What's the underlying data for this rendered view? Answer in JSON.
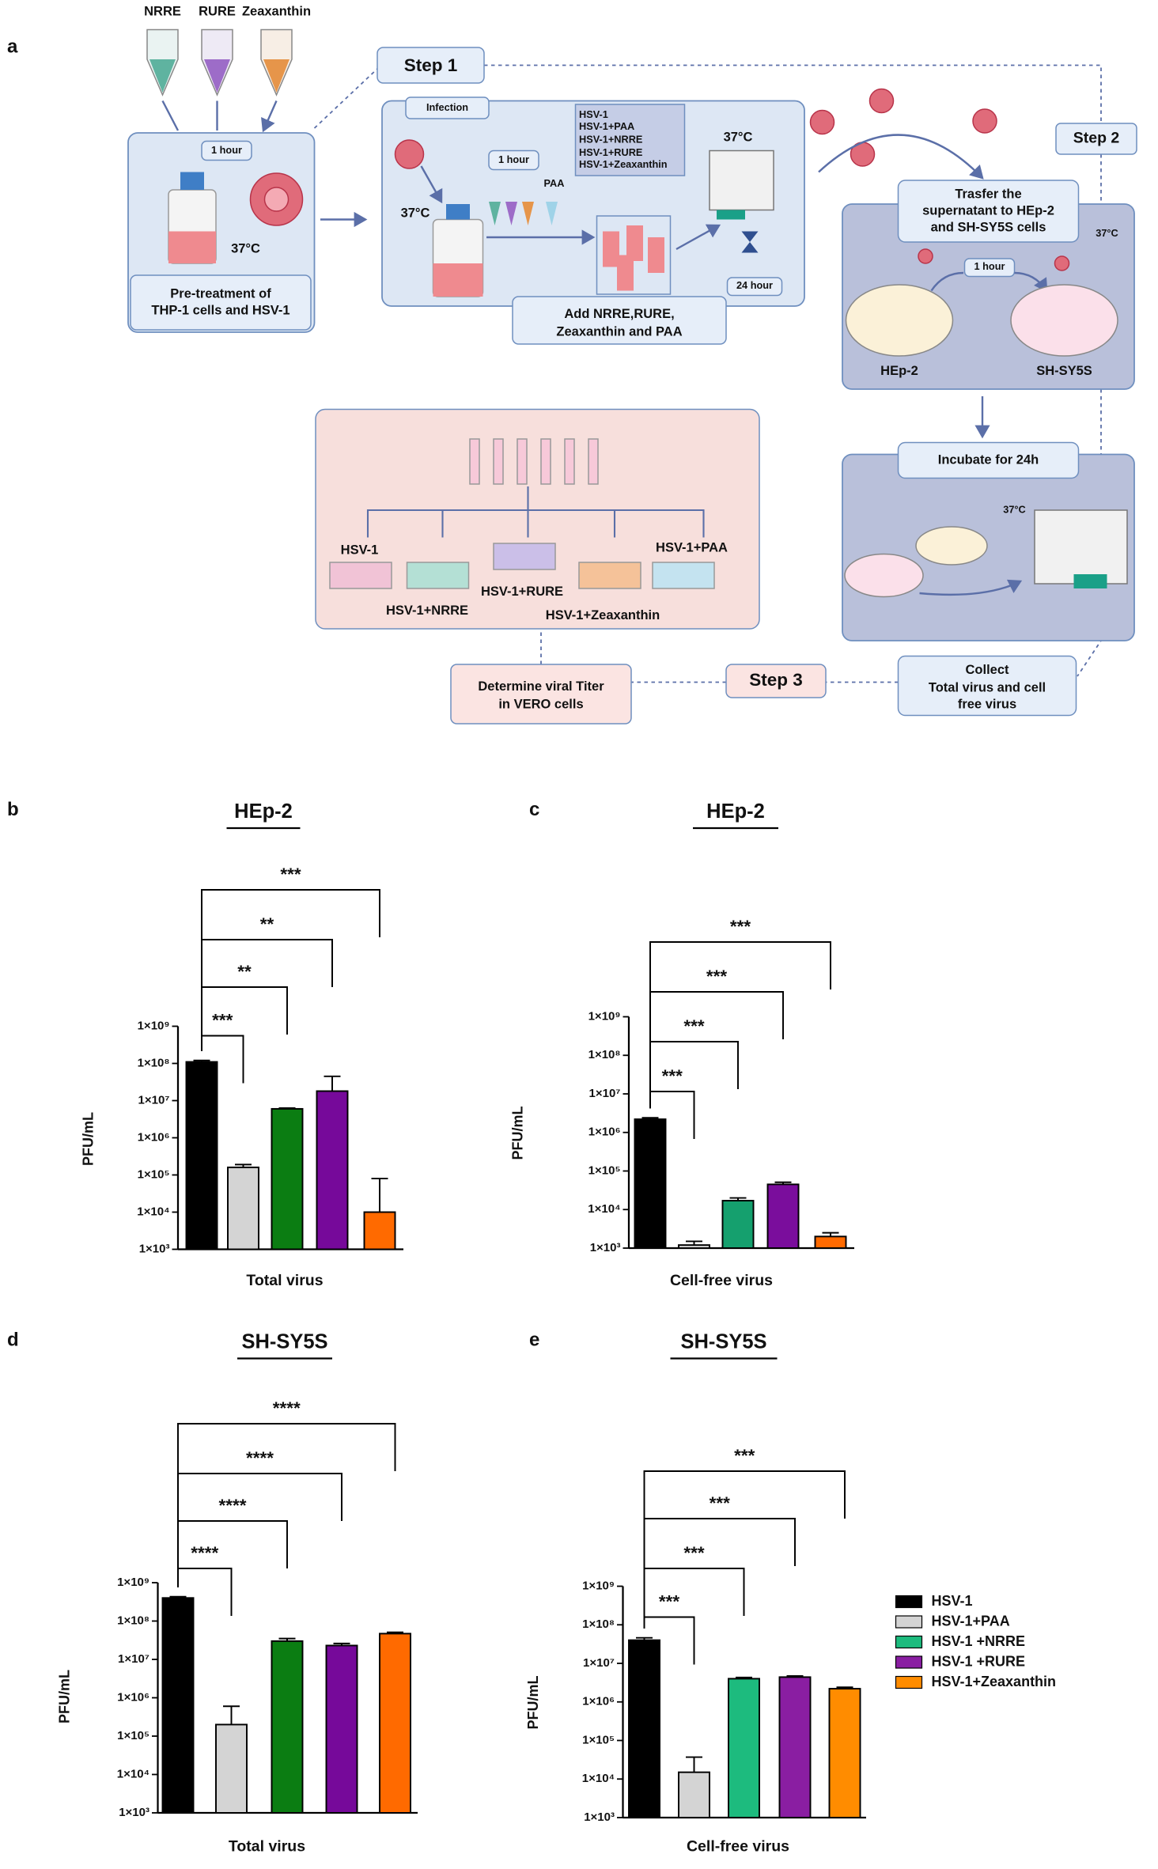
{
  "panel_labels": [
    "a",
    "b",
    "c",
    "d",
    "e"
  ],
  "diagram": {
    "tubes": [
      "NRRE",
      "RURE",
      "Zeaxanthin"
    ],
    "pretreatment": {
      "time": "1 hour",
      "temperature": "37°C",
      "label": [
        "Pre-treatment of",
        "THP-1 cells and HSV-1"
      ]
    },
    "step1": {
      "title": "Step 1",
      "infection": "Infection",
      "temperature": "37°C",
      "time": "1 hour",
      "inhibitor": "PAA",
      "groups": [
        "HSV-1",
        "HSV-1+PAA",
        "HSV-1+NRRE",
        "HSV-1+RURE",
        "HSV-1+Zeaxanthin"
      ],
      "incubator_temperature": "37°C",
      "incubation": "24 hour",
      "label": [
        "Add NRRE,RURE,",
        "Zeaxanthin and PAA"
      ]
    },
    "step2": {
      "title": "Step 2",
      "label": [
        "Trasfer the",
        "supernatant to HEp-2",
        "and SH-SY5S cells"
      ],
      "temperature": "37°C",
      "time": "1 hour",
      "cells": [
        "HEp-2",
        "SH-SY5S"
      ],
      "incubate": "Incubate for 24h",
      "incubator_temperature": "37°C"
    },
    "step3": {
      "title": "Step 3",
      "collect": [
        "Collect",
        "Total virus and cell",
        "free virus"
      ],
      "titer": [
        "Determine viral Titer",
        "in VERO cells"
      ],
      "plates": [
        "HSV-1",
        "HSV-1+NRRE",
        "HSV-1+RURE",
        "HSV-1+Zeaxanthin",
        "HSV-1+PAA"
      ]
    }
  },
  "chart_data": [
    {
      "type": "bar",
      "title": "HEp-2",
      "y_label": "PFU/mL",
      "x_label": "Total virus",
      "log_scale": true,
      "values": [
        110000000,
        160000,
        6000000,
        18000000,
        10000
      ],
      "errors": [
        10000000,
        30000,
        300000,
        27000000,
        70000
      ],
      "colors": [
        "#000000",
        "#d4d4d4",
        "#0b7d12",
        "#76099a",
        "#ff6a00"
      ],
      "significance": [
        "***",
        "**",
        "**",
        "***"
      ],
      "ylim": [
        1000,
        1000000000
      ],
      "yticks": [
        {
          "value": 1000,
          "label": "1×10³"
        },
        {
          "value": 10000,
          "label": "1×10⁴"
        },
        {
          "value": 100000,
          "label": "1×10⁵"
        },
        {
          "value": 1000000,
          "label": "1×10⁶"
        },
        {
          "value": 10000000,
          "label": "1×10⁷"
        },
        {
          "value": 100000000,
          "label": "1×10⁸"
        },
        {
          "value": 1000000000,
          "label": "1×10⁹"
        }
      ]
    },
    {
      "type": "bar",
      "title": "HEp-2",
      "y_label": "PFU/mL",
      "x_label": "Cell-free virus",
      "log_scale": true,
      "values": [
        2200000,
        1200,
        17000,
        45000,
        2000
      ],
      "errors": [
        200000,
        300,
        3000,
        6000,
        500
      ],
      "colors": [
        "#000000",
        "#d4d4d4",
        "#15a06e",
        "#7a0d9c",
        "#ff6a00"
      ],
      "significance": [
        "***",
        "***",
        "***",
        "***"
      ],
      "ylim": [
        1000,
        1000000000
      ],
      "yticks": [
        {
          "value": 1000,
          "label": "1×10³"
        },
        {
          "value": 10000,
          "label": "1×10⁴"
        },
        {
          "value": 100000,
          "label": "1×10⁵"
        },
        {
          "value": 1000000,
          "label": "1×10⁶"
        },
        {
          "value": 10000000,
          "label": "1×10⁷"
        },
        {
          "value": 100000000,
          "label": "1×10⁸"
        },
        {
          "value": 1000000000,
          "label": "1×10⁹"
        }
      ]
    },
    {
      "type": "bar",
      "title": "SH-SY5S",
      "y_label": "PFU/mL",
      "x_label": "Total virus",
      "log_scale": true,
      "values": [
        400000000,
        200000,
        30000000,
        23000000,
        47000000
      ],
      "errors": [
        30000000,
        400000,
        5000000,
        3000000,
        4000000
      ],
      "colors": [
        "#000000",
        "#d4d4d4",
        "#0b7d12",
        "#76099a",
        "#ff6a00"
      ],
      "significance": [
        "****",
        "****",
        "****",
        "****"
      ],
      "ylim": [
        1000,
        1000000000
      ],
      "yticks": [
        {
          "value": 1000,
          "label": "1×10³"
        },
        {
          "value": 10000,
          "label": "1×10⁴"
        },
        {
          "value": 100000,
          "label": "1×10⁵"
        },
        {
          "value": 1000000,
          "label": "1×10⁶"
        },
        {
          "value": 10000000,
          "label": "1×10⁷"
        },
        {
          "value": 100000000,
          "label": "1×10⁸"
        },
        {
          "value": 1000000000,
          "label": "1×10⁹"
        }
      ]
    },
    {
      "type": "bar",
      "title": "SH-SY5S",
      "y_label": "PFU/mL",
      "x_label": "Cell-free virus",
      "log_scale": true,
      "values": [
        40000000,
        15000,
        4000000,
        4400000,
        2200000
      ],
      "errors": [
        6000000,
        22000,
        300000,
        300000,
        200000
      ],
      "colors": [
        "#000000",
        "#d4d4d4",
        "#1dbb7e",
        "#8a1ea2",
        "#ff8c00"
      ],
      "significance": [
        "***",
        "***",
        "***",
        "***"
      ],
      "legend": [
        "HSV-1",
        "HSV-1+PAA",
        "HSV-1 +NRRE",
        "HSV-1 +RURE",
        "HSV-1+Zeaxanthin"
      ],
      "ylim": [
        1000,
        1000000000
      ],
      "yticks": [
        {
          "value": 1000,
          "label": "1×10³"
        },
        {
          "value": 10000,
          "label": "1×10⁴"
        },
        {
          "value": 100000,
          "label": "1×10⁵"
        },
        {
          "value": 1000000,
          "label": "1×10⁶"
        },
        {
          "value": 10000000,
          "label": "1×10⁷"
        },
        {
          "value": 100000000,
          "label": "1×10⁸"
        },
        {
          "value": 1000000000,
          "label": "1×10⁹"
        }
      ]
    }
  ]
}
